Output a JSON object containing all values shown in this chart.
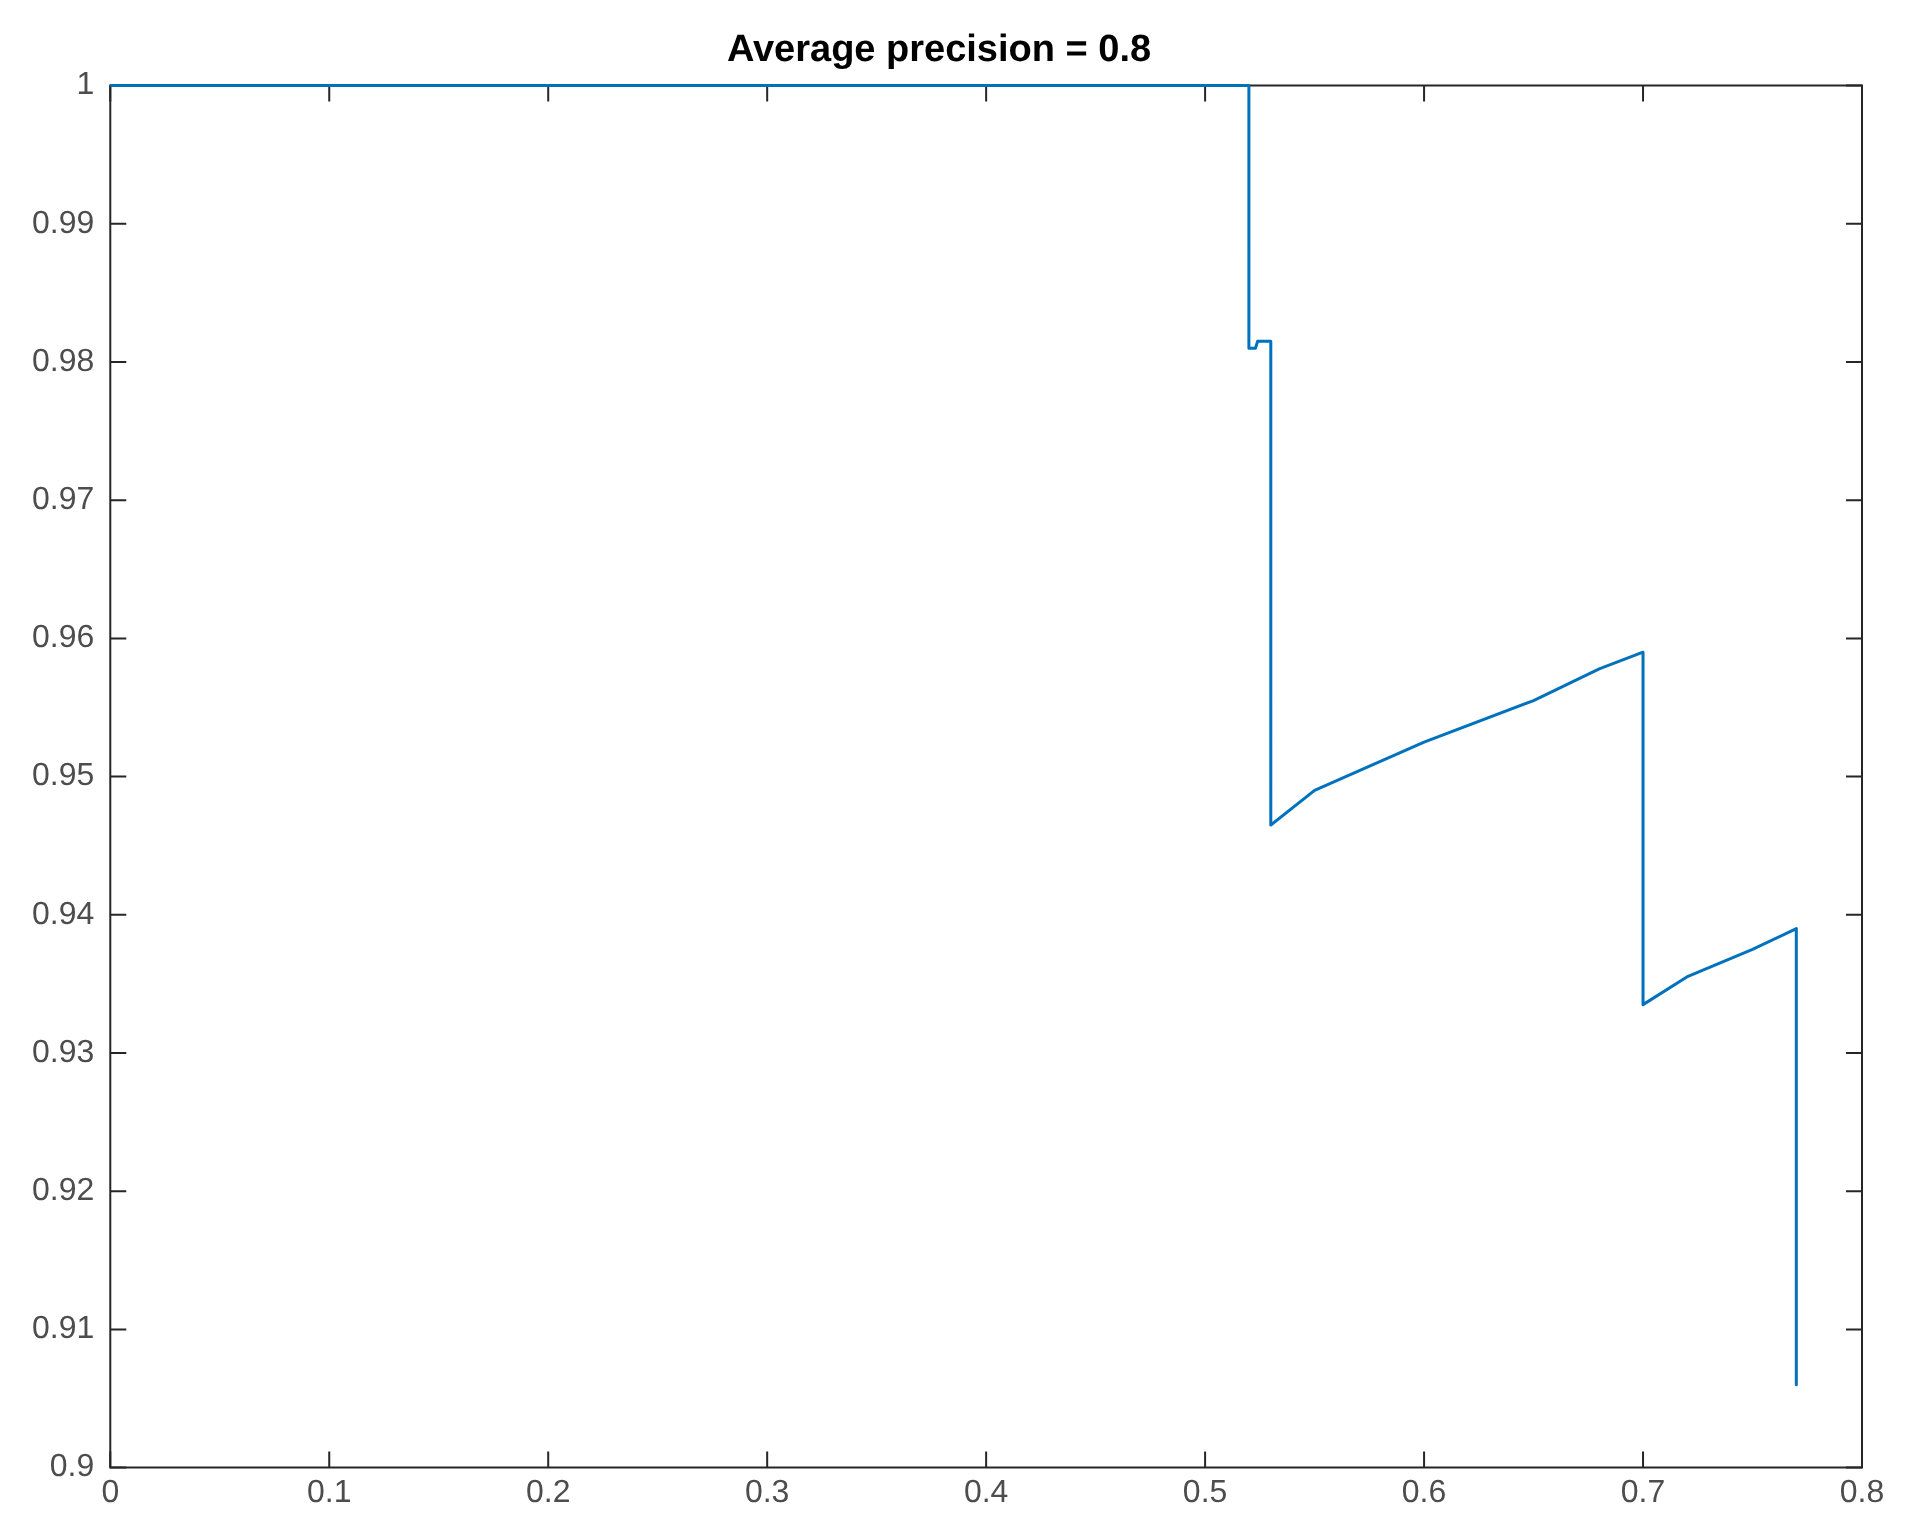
{
  "chart_data": {
    "type": "line",
    "title": "Average precision = 0.8",
    "x": [
      0,
      0.52,
      0.52,
      0.523,
      0.524,
      0.53,
      0.53,
      0.55,
      0.6,
      0.65,
      0.68,
      0.7,
      0.7,
      0.72,
      0.75,
      0.77,
      0.77
    ],
    "series": [
      {
        "color": "#0072bd",
        "values": [
          1,
          1,
          0.981,
          0.981,
          0.9815,
          0.9815,
          0.9465,
          0.949,
          0.9525,
          0.9555,
          0.9578,
          0.959,
          0.9335,
          0.9355,
          0.9375,
          0.939,
          0.906
        ]
      }
    ],
    "xlim": [
      0,
      0.8
    ],
    "xticks": [
      0,
      0.1,
      0.2,
      0.3,
      0.4,
      0.5,
      0.6,
      0.7,
      0.8
    ],
    "ylim": [
      0.9,
      1
    ],
    "yticks": [
      0.9,
      0.91,
      0.92,
      0.93,
      0.94,
      0.95,
      0.96,
      0.97,
      0.98,
      0.99,
      1
    ],
    "grid": false,
    "legend": false,
    "marker": "none",
    "line_style": "solid"
  }
}
